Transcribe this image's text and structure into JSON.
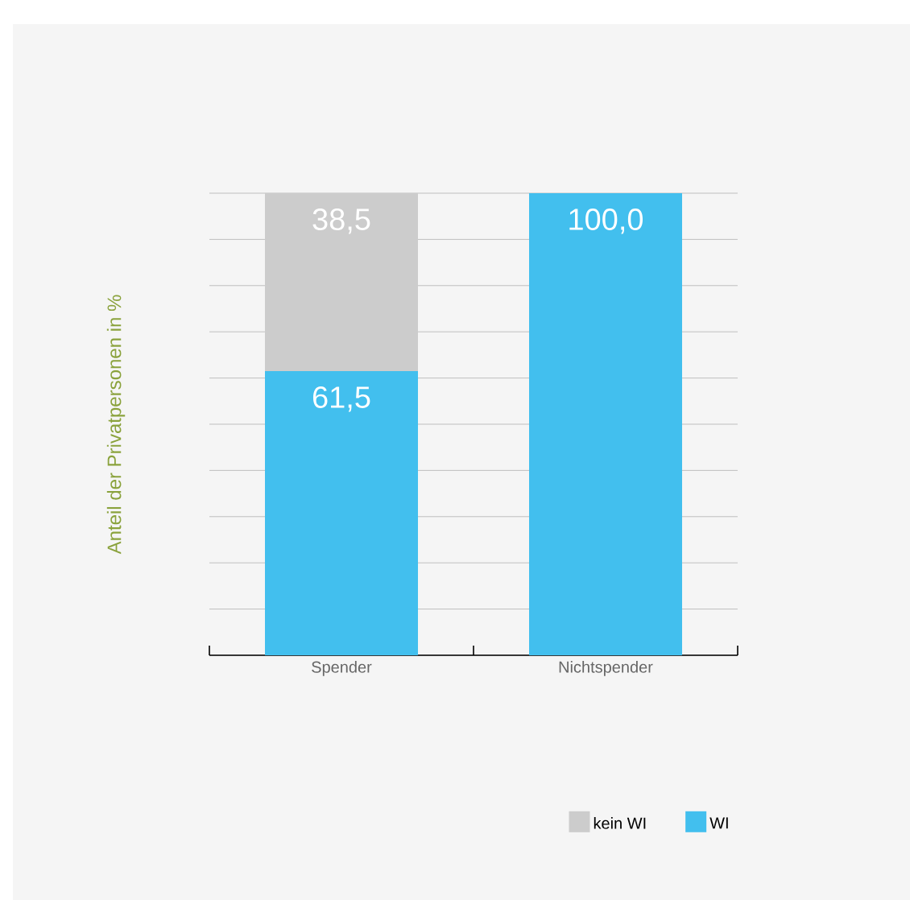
{
  "chart_data": {
    "type": "bar",
    "stacked": true,
    "ylabel": "Anteil der Privatpersonen in %",
    "categories": [
      "Spender",
      "Nichtspender"
    ],
    "series": [
      {
        "name": "WI",
        "color": "#42bfee",
        "values": [
          61.5,
          100.0
        ],
        "value_labels": [
          "61,5",
          "100,0"
        ]
      },
      {
        "name": "kein WI",
        "color": "#cccccc",
        "values": [
          38.5,
          null
        ],
        "value_labels": [
          "38,5",
          null
        ]
      }
    ],
    "grid": "y",
    "legend": "bottom right",
    "tick_labels": "x"
  }
}
